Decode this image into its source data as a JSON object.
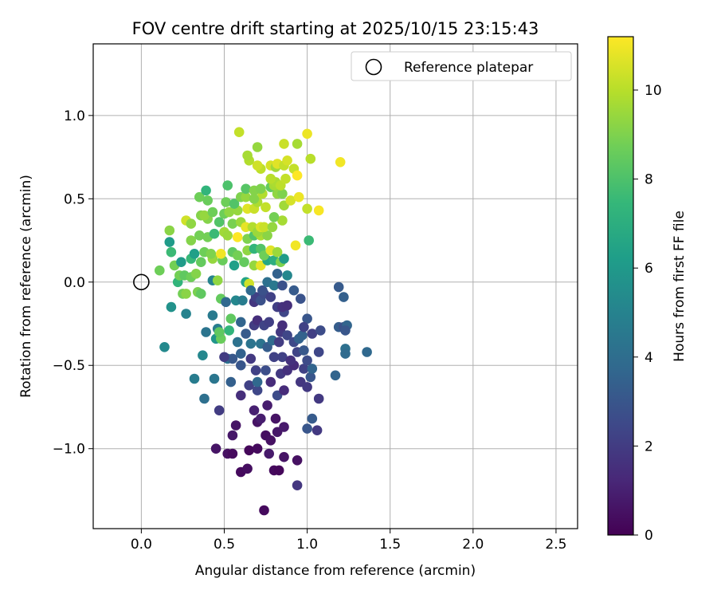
{
  "chart_data": {
    "type": "scatter",
    "title": "FOV centre drift starting at 2025/10/15 23:15:43",
    "xlabel": "Angular distance from reference (arcmin)",
    "ylabel": "Rotation from reference (arcmin)",
    "xlim": [
      -0.29,
      2.63
    ],
    "ylim": [
      -1.48,
      1.43
    ],
    "xticks": [
      0.0,
      0.5,
      1.0,
      1.5,
      2.0,
      2.5
    ],
    "xtick_labels": [
      "0.0",
      "0.5",
      "1.0",
      "1.5",
      "2.0",
      "2.5"
    ],
    "yticks": [
      -1.0,
      -0.5,
      0.0,
      0.5,
      1.0
    ],
    "ytick_labels": [
      "−1.0",
      "−0.5",
      "0.0",
      "0.5",
      "1.0"
    ],
    "grid": true,
    "legend": {
      "position": "top-right",
      "entries": [
        "Reference platepar"
      ]
    },
    "reference_point": {
      "x": 0.0,
      "y": 0.0
    },
    "colorbar": {
      "label": "Hours from first FF file",
      "range": [
        0,
        11.2
      ],
      "ticks": [
        0,
        2,
        4,
        6,
        8,
        10
      ],
      "tick_labels": [
        "0",
        "2",
        "4",
        "6",
        "8",
        "10"
      ],
      "colormap": [
        "#440154",
        "#482878",
        "#3e4989",
        "#31688e",
        "#26828e",
        "#1f9e89",
        "#35b779",
        "#6ece58",
        "#b5de2b",
        "#fde725"
      ]
    },
    "points": [
      {
        "x": 0.74,
        "y": -1.37,
        "t": 0.3
      },
      {
        "x": 0.6,
        "y": -1.14,
        "t": 0.3
      },
      {
        "x": 0.64,
        "y": -1.12,
        "t": 0.4
      },
      {
        "x": 0.8,
        "y": -1.13,
        "t": 0.3
      },
      {
        "x": 0.83,
        "y": -1.13,
        "t": 0.2
      },
      {
        "x": 0.52,
        "y": -1.03,
        "t": 0.5
      },
      {
        "x": 0.55,
        "y": -1.03,
        "t": 0.3
      },
      {
        "x": 0.45,
        "y": -1.0,
        "t": 0.6
      },
      {
        "x": 0.65,
        "y": -1.01,
        "t": 0.2
      },
      {
        "x": 0.7,
        "y": -1.0,
        "t": 0.3
      },
      {
        "x": 0.77,
        "y": -1.03,
        "t": 0.8
      },
      {
        "x": 0.86,
        "y": -1.05,
        "t": 0.6
      },
      {
        "x": 0.94,
        "y": -1.07,
        "t": 0.5
      },
      {
        "x": 0.94,
        "y": -1.22,
        "t": 1.8
      },
      {
        "x": 0.55,
        "y": -0.92,
        "t": 0.7
      },
      {
        "x": 0.75,
        "y": -0.92,
        "t": 0.4
      },
      {
        "x": 0.78,
        "y": -0.95,
        "t": 0.5
      },
      {
        "x": 0.57,
        "y": -0.86,
        "t": 0.6
      },
      {
        "x": 0.7,
        "y": -0.84,
        "t": 0.6
      },
      {
        "x": 0.72,
        "y": -0.82,
        "t": 0.9
      },
      {
        "x": 0.81,
        "y": -0.82,
        "t": 0.6
      },
      {
        "x": 0.82,
        "y": -0.9,
        "t": 0.7
      },
      {
        "x": 0.86,
        "y": -0.87,
        "t": 0.8
      },
      {
        "x": 0.76,
        "y": -0.74,
        "t": 0.9
      },
      {
        "x": 0.68,
        "y": -0.77,
        "t": 1.0
      },
      {
        "x": 0.47,
        "y": -0.77,
        "t": 2.0
      },
      {
        "x": 0.38,
        "y": -0.7,
        "t": 4.1
      },
      {
        "x": 0.6,
        "y": -0.68,
        "t": 1.5
      },
      {
        "x": 0.82,
        "y": -0.68,
        "t": 2.6
      },
      {
        "x": 0.86,
        "y": -0.65,
        "t": 1.4
      },
      {
        "x": 0.7,
        "y": -0.65,
        "t": 2.4
      },
      {
        "x": 0.96,
        "y": -0.6,
        "t": 1.8
      },
      {
        "x": 1.0,
        "y": -0.63,
        "t": 1.9
      },
      {
        "x": 1.07,
        "y": -0.7,
        "t": 1.9
      },
      {
        "x": 1.03,
        "y": -0.82,
        "t": 3.2
      },
      {
        "x": 1.0,
        "y": -0.88,
        "t": 3.0
      },
      {
        "x": 1.06,
        "y": -0.89,
        "t": 1.9
      },
      {
        "x": 0.32,
        "y": -0.58,
        "t": 4.7
      },
      {
        "x": 0.44,
        "y": -0.58,
        "t": 4.4
      },
      {
        "x": 0.54,
        "y": -0.6,
        "t": 3.4
      },
      {
        "x": 0.65,
        "y": -0.62,
        "t": 2.2
      },
      {
        "x": 0.7,
        "y": -0.6,
        "t": 3.8
      },
      {
        "x": 0.78,
        "y": -0.6,
        "t": 1.4
      },
      {
        "x": 0.84,
        "y": -0.55,
        "t": 1.9
      },
      {
        "x": 0.88,
        "y": -0.53,
        "t": 1.6
      },
      {
        "x": 0.92,
        "y": -0.5,
        "t": 1.4
      },
      {
        "x": 0.98,
        "y": -0.52,
        "t": 2.2
      },
      {
        "x": 1.02,
        "y": -0.57,
        "t": 3.0
      },
      {
        "x": 1.03,
        "y": -0.52,
        "t": 3.6
      },
      {
        "x": 1.17,
        "y": -0.56,
        "t": 3.6
      },
      {
        "x": 0.52,
        "y": -0.46,
        "t": 4.2
      },
      {
        "x": 0.55,
        "y": -0.46,
        "t": 3.1
      },
      {
        "x": 0.6,
        "y": -0.5,
        "t": 3.0
      },
      {
        "x": 0.66,
        "y": -0.46,
        "t": 1.9
      },
      {
        "x": 0.69,
        "y": -0.53,
        "t": 2.2
      },
      {
        "x": 0.75,
        "y": -0.53,
        "t": 2.7
      },
      {
        "x": 0.8,
        "y": -0.45,
        "t": 2.2
      },
      {
        "x": 0.85,
        "y": -0.45,
        "t": 2.2
      },
      {
        "x": 0.9,
        "y": -0.47,
        "t": 1.6
      },
      {
        "x": 0.94,
        "y": -0.42,
        "t": 2.3
      },
      {
        "x": 0.98,
        "y": -0.41,
        "t": 3.1
      },
      {
        "x": 1.0,
        "y": -0.47,
        "t": 2.6
      },
      {
        "x": 1.07,
        "y": -0.42,
        "t": 2.4
      },
      {
        "x": 1.23,
        "y": -0.4,
        "t": 4.1
      },
      {
        "x": 1.23,
        "y": -0.43,
        "t": 3.9
      },
      {
        "x": 1.36,
        "y": -0.42,
        "t": 3.8
      },
      {
        "x": 0.14,
        "y": -0.39,
        "t": 5.3
      },
      {
        "x": 0.37,
        "y": -0.44,
        "t": 5.2
      },
      {
        "x": 0.45,
        "y": -0.34,
        "t": 5.8
      },
      {
        "x": 0.48,
        "y": -0.34,
        "t": 8.6
      },
      {
        "x": 0.5,
        "y": -0.45,
        "t": 2.0
      },
      {
        "x": 0.58,
        "y": -0.36,
        "t": 4.2
      },
      {
        "x": 0.6,
        "y": -0.43,
        "t": 3.5
      },
      {
        "x": 0.63,
        "y": -0.31,
        "t": 3.2
      },
      {
        "x": 0.66,
        "y": -0.37,
        "t": 4.3
      },
      {
        "x": 0.72,
        "y": -0.37,
        "t": 4.3
      },
      {
        "x": 0.76,
        "y": -0.39,
        "t": 3.3
      },
      {
        "x": 0.79,
        "y": -0.35,
        "t": 3.9
      },
      {
        "x": 0.83,
        "y": -0.36,
        "t": 2.0
      },
      {
        "x": 0.84,
        "y": -0.3,
        "t": 1.9
      },
      {
        "x": 0.88,
        "y": -0.32,
        "t": 2.4
      },
      {
        "x": 0.92,
        "y": -0.36,
        "t": 2.5
      },
      {
        "x": 0.95,
        "y": -0.34,
        "t": 3.5
      },
      {
        "x": 0.97,
        "y": -0.32,
        "t": 3.5
      },
      {
        "x": 1.03,
        "y": -0.31,
        "t": 2.1
      },
      {
        "x": 1.08,
        "y": -0.29,
        "t": 2.6
      },
      {
        "x": 1.19,
        "y": -0.27,
        "t": 3.3
      },
      {
        "x": 1.22,
        "y": -0.27,
        "t": 2.8
      },
      {
        "x": 1.24,
        "y": -0.26,
        "t": 3.6
      },
      {
        "x": 1.23,
        "y": -0.29,
        "t": 3.0
      },
      {
        "x": 0.39,
        "y": -0.3,
        "t": 4.3
      },
      {
        "x": 0.46,
        "y": -0.28,
        "t": 4.8
      },
      {
        "x": 0.47,
        "y": -0.3,
        "t": 8.4
      },
      {
        "x": 0.54,
        "y": -0.22,
        "t": 8.4
      },
      {
        "x": 0.53,
        "y": -0.29,
        "t": 7.3
      },
      {
        "x": 0.6,
        "y": -0.24,
        "t": 3.6
      },
      {
        "x": 0.68,
        "y": -0.26,
        "t": 2.0
      },
      {
        "x": 0.7,
        "y": -0.23,
        "t": 1.5
      },
      {
        "x": 0.74,
        "y": -0.26,
        "t": 2.3
      },
      {
        "x": 0.77,
        "y": -0.24,
        "t": 2.1
      },
      {
        "x": 0.85,
        "y": -0.26,
        "t": 1.5
      },
      {
        "x": 0.86,
        "y": -0.18,
        "t": 2.4
      },
      {
        "x": 1.0,
        "y": -0.22,
        "t": 3.0
      },
      {
        "x": 0.98,
        "y": -0.27,
        "t": 2.2
      },
      {
        "x": 0.18,
        "y": -0.15,
        "t": 5.7
      },
      {
        "x": 0.27,
        "y": -0.19,
        "t": 5.0
      },
      {
        "x": 0.43,
        "y": -0.2,
        "t": 4.6
      },
      {
        "x": 0.48,
        "y": -0.1,
        "t": 8.5
      },
      {
        "x": 0.51,
        "y": -0.12,
        "t": 3.8
      },
      {
        "x": 0.57,
        "y": -0.11,
        "t": 5.2
      },
      {
        "x": 0.61,
        "y": -0.11,
        "t": 4.7
      },
      {
        "x": 0.68,
        "y": -0.12,
        "t": 1.8
      },
      {
        "x": 0.69,
        "y": -0.09,
        "t": 2.2
      },
      {
        "x": 0.72,
        "y": -0.11,
        "t": 2.8
      },
      {
        "x": 0.74,
        "y": -0.07,
        "t": 2.6
      },
      {
        "x": 0.78,
        "y": -0.09,
        "t": 2.2
      },
      {
        "x": 0.82,
        "y": -0.15,
        "t": 2.1
      },
      {
        "x": 0.85,
        "y": -0.15,
        "t": 1.6
      },
      {
        "x": 0.88,
        "y": -0.14,
        "t": 1.5
      },
      {
        "x": 0.92,
        "y": -0.05,
        "t": 3.2
      },
      {
        "x": 0.96,
        "y": -0.1,
        "t": 2.9
      },
      {
        "x": 1.19,
        "y": -0.03,
        "t": 3.2
      },
      {
        "x": 1.22,
        "y": -0.09,
        "t": 3.4
      },
      {
        "x": 0.22,
        "y": 0.0,
        "t": 7.3
      },
      {
        "x": 0.25,
        "y": -0.07,
        "t": 8.8
      },
      {
        "x": 0.27,
        "y": -0.07,
        "t": 9.2
      },
      {
        "x": 0.34,
        "y": -0.06,
        "t": 8.9
      },
      {
        "x": 0.36,
        "y": -0.07,
        "t": 8.4
      },
      {
        "x": 0.43,
        "y": 0.01,
        "t": 5.0
      },
      {
        "x": 0.46,
        "y": 0.01,
        "t": 9.3
      },
      {
        "x": 0.63,
        "y": 0.0,
        "t": 6.5
      },
      {
        "x": 0.65,
        "y": -0.01,
        "t": 10.4
      },
      {
        "x": 0.66,
        "y": -0.05,
        "t": 3.8
      },
      {
        "x": 0.73,
        "y": -0.05,
        "t": 2.8
      },
      {
        "x": 0.76,
        "y": 0.0,
        "t": 4.1
      },
      {
        "x": 0.8,
        "y": -0.02,
        "t": 4.5
      },
      {
        "x": 0.85,
        "y": -0.02,
        "t": 2.8
      },
      {
        "x": 0.88,
        "y": 0.04,
        "t": 5.2
      },
      {
        "x": 0.11,
        "y": 0.07,
        "t": 8.7
      },
      {
        "x": 0.23,
        "y": 0.04,
        "t": 8.8
      },
      {
        "x": 0.26,
        "y": 0.04,
        "t": 8.4
      },
      {
        "x": 0.3,
        "y": 0.03,
        "t": 8.7
      },
      {
        "x": 0.33,
        "y": 0.05,
        "t": 9.1
      },
      {
        "x": 0.2,
        "y": 0.1,
        "t": 8.8
      },
      {
        "x": 0.24,
        "y": 0.12,
        "t": 6.1
      },
      {
        "x": 0.3,
        "y": 0.14,
        "t": 7.5
      },
      {
        "x": 0.36,
        "y": 0.12,
        "t": 8.5
      },
      {
        "x": 0.43,
        "y": 0.14,
        "t": 9.4
      },
      {
        "x": 0.49,
        "y": 0.13,
        "t": 8.6
      },
      {
        "x": 0.56,
        "y": 0.1,
        "t": 6.3
      },
      {
        "x": 0.62,
        "y": 0.12,
        "t": 8.5
      },
      {
        "x": 0.68,
        "y": 0.1,
        "t": 9.4
      },
      {
        "x": 0.72,
        "y": 0.1,
        "t": 10.8
      },
      {
        "x": 0.76,
        "y": 0.13,
        "t": 6.6
      },
      {
        "x": 0.8,
        "y": 0.13,
        "t": 7.0
      },
      {
        "x": 0.84,
        "y": 0.12,
        "t": 9.0
      },
      {
        "x": 0.86,
        "y": 0.14,
        "t": 6.1
      },
      {
        "x": 0.82,
        "y": 0.05,
        "t": 3.5
      },
      {
        "x": 0.18,
        "y": 0.18,
        "t": 7.6
      },
      {
        "x": 0.32,
        "y": 0.17,
        "t": 6.3
      },
      {
        "x": 0.38,
        "y": 0.18,
        "t": 8.7
      },
      {
        "x": 0.42,
        "y": 0.17,
        "t": 9.0
      },
      {
        "x": 0.48,
        "y": 0.17,
        "t": 11.0
      },
      {
        "x": 0.55,
        "y": 0.18,
        "t": 8.4
      },
      {
        "x": 0.58,
        "y": 0.16,
        "t": 8.8
      },
      {
        "x": 0.64,
        "y": 0.19,
        "t": 9.3
      },
      {
        "x": 0.68,
        "y": 0.2,
        "t": 7.3
      },
      {
        "x": 0.72,
        "y": 0.2,
        "t": 8.1
      },
      {
        "x": 0.74,
        "y": 0.16,
        "t": 8.7
      },
      {
        "x": 0.78,
        "y": 0.19,
        "t": 10.7
      },
      {
        "x": 0.82,
        "y": 0.18,
        "t": 9.5
      },
      {
        "x": 0.93,
        "y": 0.22,
        "t": 11.0
      },
      {
        "x": 1.01,
        "y": 0.25,
        "t": 7.6
      },
      {
        "x": 0.17,
        "y": 0.24,
        "t": 6.1
      },
      {
        "x": 0.3,
        "y": 0.25,
        "t": 9.1
      },
      {
        "x": 0.35,
        "y": 0.28,
        "t": 8.8
      },
      {
        "x": 0.4,
        "y": 0.27,
        "t": 8.8
      },
      {
        "x": 0.44,
        "y": 0.29,
        "t": 7.6
      },
      {
        "x": 0.5,
        "y": 0.3,
        "t": 9.6
      },
      {
        "x": 0.52,
        "y": 0.28,
        "t": 9.5
      },
      {
        "x": 0.58,
        "y": 0.27,
        "t": 11.2
      },
      {
        "x": 0.64,
        "y": 0.26,
        "t": 9.0
      },
      {
        "x": 0.68,
        "y": 0.28,
        "t": 8.1
      },
      {
        "x": 0.72,
        "y": 0.28,
        "t": 9.8
      },
      {
        "x": 0.76,
        "y": 0.28,
        "t": 9.2
      },
      {
        "x": 0.17,
        "y": 0.31,
        "t": 9.2
      },
      {
        "x": 0.27,
        "y": 0.37,
        "t": 10.4
      },
      {
        "x": 0.3,
        "y": 0.35,
        "t": 9.3
      },
      {
        "x": 0.4,
        "y": 0.38,
        "t": 9.1
      },
      {
        "x": 0.47,
        "y": 0.36,
        "t": 8.1
      },
      {
        "x": 0.55,
        "y": 0.35,
        "t": 8.9
      },
      {
        "x": 0.6,
        "y": 0.36,
        "t": 9.5
      },
      {
        "x": 0.63,
        "y": 0.33,
        "t": 10.8
      },
      {
        "x": 0.67,
        "y": 0.33,
        "t": 9.9
      },
      {
        "x": 0.7,
        "y": 0.3,
        "t": 9.5
      },
      {
        "x": 0.72,
        "y": 0.33,
        "t": 10.6
      },
      {
        "x": 0.74,
        "y": 0.33,
        "t": 10.3
      },
      {
        "x": 0.79,
        "y": 0.33,
        "t": 9.4
      },
      {
        "x": 0.85,
        "y": 0.37,
        "t": 9.7
      },
      {
        "x": 0.36,
        "y": 0.4,
        "t": 9.1
      },
      {
        "x": 0.38,
        "y": 0.4,
        "t": 9.4
      },
      {
        "x": 0.43,
        "y": 0.42,
        "t": 8.7
      },
      {
        "x": 0.5,
        "y": 0.41,
        "t": 8.7
      },
      {
        "x": 0.53,
        "y": 0.42,
        "t": 9.3
      },
      {
        "x": 0.58,
        "y": 0.43,
        "t": 9.4
      },
      {
        "x": 0.64,
        "y": 0.44,
        "t": 10.7
      },
      {
        "x": 0.68,
        "y": 0.44,
        "t": 10.3
      },
      {
        "x": 0.7,
        "y": 0.48,
        "t": 9.8
      },
      {
        "x": 0.75,
        "y": 0.45,
        "t": 10.2
      },
      {
        "x": 0.8,
        "y": 0.39,
        "t": 8.8
      },
      {
        "x": 0.86,
        "y": 0.46,
        "t": 9.6
      },
      {
        "x": 0.9,
        "y": 0.49,
        "t": 10.5
      },
      {
        "x": 1.0,
        "y": 0.44,
        "t": 10.2
      },
      {
        "x": 1.07,
        "y": 0.43,
        "t": 11.1
      },
      {
        "x": 0.35,
        "y": 0.51,
        "t": 8.7
      },
      {
        "x": 0.4,
        "y": 0.49,
        "t": 8.6
      },
      {
        "x": 0.51,
        "y": 0.48,
        "t": 8.7
      },
      {
        "x": 0.56,
        "y": 0.47,
        "t": 8.1
      },
      {
        "x": 0.6,
        "y": 0.51,
        "t": 9.0
      },
      {
        "x": 0.63,
        "y": 0.51,
        "t": 9.4
      },
      {
        "x": 0.68,
        "y": 0.5,
        "t": 9.1
      },
      {
        "x": 0.73,
        "y": 0.53,
        "t": 9.9
      },
      {
        "x": 0.82,
        "y": 0.53,
        "t": 9.3
      },
      {
        "x": 0.85,
        "y": 0.53,
        "t": 9.0
      },
      {
        "x": 0.95,
        "y": 0.51,
        "t": 10.9
      },
      {
        "x": 0.39,
        "y": 0.55,
        "t": 7.3
      },
      {
        "x": 0.52,
        "y": 0.58,
        "t": 8.0
      },
      {
        "x": 0.63,
        "y": 0.56,
        "t": 8.2
      },
      {
        "x": 0.68,
        "y": 0.55,
        "t": 9.1
      },
      {
        "x": 0.72,
        "y": 0.56,
        "t": 9.0
      },
      {
        "x": 0.78,
        "y": 0.57,
        "t": 8.5
      },
      {
        "x": 0.8,
        "y": 0.58,
        "t": 9.7
      },
      {
        "x": 0.81,
        "y": 0.6,
        "t": 9.8
      },
      {
        "x": 0.84,
        "y": 0.58,
        "t": 10.1
      },
      {
        "x": 0.72,
        "y": 0.68,
        "t": 10.1
      },
      {
        "x": 0.78,
        "y": 0.7,
        "t": 10.5
      },
      {
        "x": 0.81,
        "y": 0.69,
        "t": 9.6
      },
      {
        "x": 0.82,
        "y": 0.71,
        "t": 10.7
      },
      {
        "x": 0.86,
        "y": 0.7,
        "t": 10.2
      },
      {
        "x": 0.88,
        "y": 0.73,
        "t": 10.5
      },
      {
        "x": 0.92,
        "y": 0.68,
        "t": 10.2
      },
      {
        "x": 0.94,
        "y": 0.64,
        "t": 11.2
      },
      {
        "x": 1.02,
        "y": 0.74,
        "t": 10.0
      },
      {
        "x": 1.2,
        "y": 0.72,
        "t": 11.0
      },
      {
        "x": 0.65,
        "y": 0.73,
        "t": 9.9
      },
      {
        "x": 0.7,
        "y": 0.7,
        "t": 10.4
      },
      {
        "x": 0.64,
        "y": 0.76,
        "t": 9.7
      },
      {
        "x": 0.7,
        "y": 0.81,
        "t": 9.4
      },
      {
        "x": 0.86,
        "y": 0.83,
        "t": 10.3
      },
      {
        "x": 0.94,
        "y": 0.83,
        "t": 9.7
      },
      {
        "x": 0.59,
        "y": 0.9,
        "t": 10.2
      },
      {
        "x": 1.0,
        "y": 0.89,
        "t": 10.9
      },
      {
        "x": 0.87,
        "y": 0.62,
        "t": 10.2
      },
      {
        "x": 0.78,
        "y": 0.62,
        "t": 10.0
      }
    ]
  }
}
